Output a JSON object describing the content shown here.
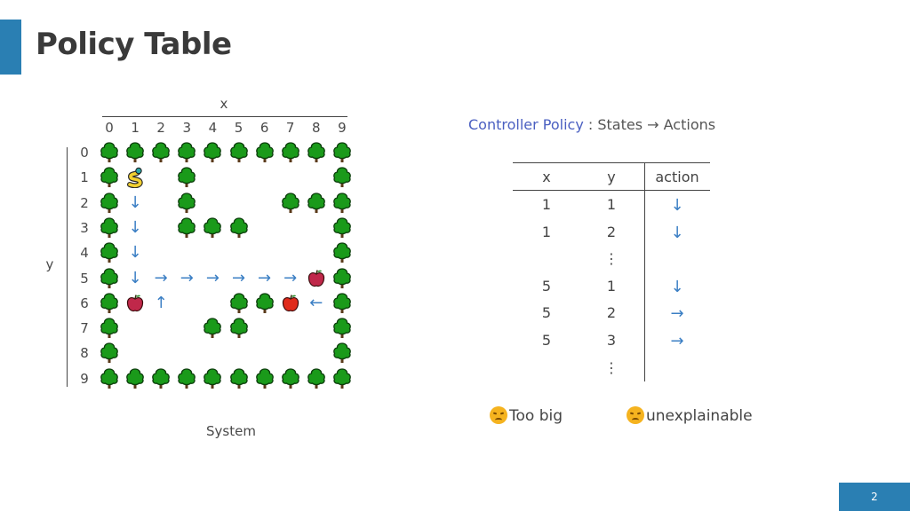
{
  "slide": {
    "title": "Policy Table",
    "page_number": "2"
  },
  "grid": {
    "x_label": "x",
    "y_label": "y",
    "caption": "System",
    "x_ticks": [
      "0",
      "1",
      "2",
      "3",
      "4",
      "5",
      "6",
      "7",
      "8",
      "9"
    ],
    "y_ticks": [
      "0",
      "1",
      "2",
      "3",
      "4",
      "5",
      "6",
      "7",
      "8",
      "9"
    ],
    "trees": [
      [
        0,
        0
      ],
      [
        1,
        0
      ],
      [
        2,
        0
      ],
      [
        3,
        0
      ],
      [
        4,
        0
      ],
      [
        5,
        0
      ],
      [
        6,
        0
      ],
      [
        7,
        0
      ],
      [
        8,
        0
      ],
      [
        9,
        0
      ],
      [
        0,
        1
      ],
      [
        3,
        1
      ],
      [
        9,
        1
      ],
      [
        0,
        2
      ],
      [
        3,
        2
      ],
      [
        7,
        2
      ],
      [
        8,
        2
      ],
      [
        9,
        2
      ],
      [
        0,
        3
      ],
      [
        3,
        3
      ],
      [
        4,
        3
      ],
      [
        5,
        3
      ],
      [
        9,
        3
      ],
      [
        0,
        4
      ],
      [
        9,
        4
      ],
      [
        0,
        5
      ],
      [
        9,
        5
      ],
      [
        0,
        6
      ],
      [
        5,
        6
      ],
      [
        6,
        6
      ],
      [
        9,
        6
      ],
      [
        0,
        7
      ],
      [
        4,
        7
      ],
      [
        5,
        7
      ],
      [
        9,
        7
      ],
      [
        0,
        8
      ],
      [
        9,
        8
      ],
      [
        0,
        9
      ],
      [
        1,
        9
      ],
      [
        2,
        9
      ],
      [
        3,
        9
      ],
      [
        4,
        9
      ],
      [
        5,
        9
      ],
      [
        6,
        9
      ],
      [
        7,
        9
      ],
      [
        8,
        9
      ],
      [
        9,
        9
      ]
    ],
    "snake": [
      1,
      1
    ],
    "apples": [
      [
        8,
        5,
        "blue-apple-icon"
      ],
      [
        1,
        6,
        "blue-apple-icon"
      ],
      [
        7,
        6,
        "red-apple-icon"
      ]
    ],
    "arrows": [
      [
        1,
        2,
        "↓"
      ],
      [
        1,
        3,
        "↓"
      ],
      [
        1,
        4,
        "↓"
      ],
      [
        1,
        5,
        "↓"
      ],
      [
        2,
        5,
        "→"
      ],
      [
        3,
        5,
        "→"
      ],
      [
        4,
        5,
        "→"
      ],
      [
        5,
        5,
        "→"
      ],
      [
        6,
        5,
        "→"
      ],
      [
        7,
        5,
        "→"
      ],
      [
        2,
        6,
        "↑"
      ],
      [
        8,
        6,
        "←"
      ]
    ]
  },
  "policy": {
    "title_highlight": "Controller Policy",
    "title_rest": " : States → Actions",
    "headers": [
      "x",
      "y",
      "action"
    ],
    "rows": [
      {
        "x": "1",
        "y": "1",
        "action": "↓"
      },
      {
        "x": "1",
        "y": "2",
        "action": "↓"
      },
      {
        "x": "",
        "y": "⋮",
        "action": ""
      },
      {
        "x": "5",
        "y": "1",
        "action": "↓"
      },
      {
        "x": "5",
        "y": "2",
        "action": "→"
      },
      {
        "x": "5",
        "y": "3",
        "action": "→"
      },
      {
        "x": "",
        "y": "⋮",
        "action": ""
      }
    ]
  },
  "remarks": [
    "Too big",
    "unexplainable"
  ]
}
